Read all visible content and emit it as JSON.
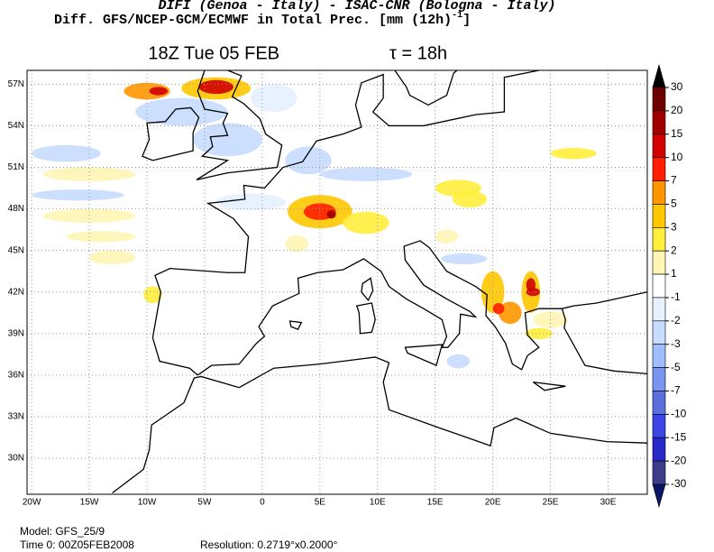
{
  "header": {
    "line1": "DIFI (Genoa - Italy)  -  ISAC-CNR (Bologna - Italy)",
    "line2": "Diff. GFS/NCEP-GCM/ECMWF in Total Prec. [mm (12h)",
    "line2_sup": "-1",
    "line2_end": "]"
  },
  "map": {
    "title": "18Z Tue 05 FEB",
    "tau": "τ = 18h",
    "xlim": [
      -20.4,
      33.4
    ],
    "ylim": [
      27.4,
      58
    ],
    "lon_ticks": [
      {
        "value": -20,
        "label": "20W"
      },
      {
        "value": -15,
        "label": "15W"
      },
      {
        "value": -10,
        "label": "10W"
      },
      {
        "value": -5,
        "label": "5W"
      },
      0,
      {
        "value": 5,
        "label": "5E"
      },
      {
        "value": 10,
        "label": "10E"
      },
      {
        "value": 15,
        "label": "15E"
      },
      {
        "value": 20,
        "label": "20E"
      },
      {
        "value": 25,
        "label": "25E"
      },
      {
        "value": 30,
        "label": "30E"
      }
    ],
    "lat_ticks": [
      {
        "value": 57,
        "label": "57N"
      },
      {
        "value": 54,
        "label": "54N"
      },
      {
        "value": 51,
        "label": "51N"
      },
      {
        "value": 48,
        "label": "48N"
      },
      {
        "value": 45,
        "label": "45N"
      },
      {
        "value": 42,
        "label": "42N"
      },
      {
        "value": 39,
        "label": "39N"
      },
      {
        "value": 36,
        "label": "36N"
      },
      {
        "value": 33,
        "label": "33N"
      },
      {
        "value": 30,
        "label": "30N"
      }
    ]
  },
  "colorbar": {
    "levels": [
      30,
      20,
      15,
      10,
      7,
      5,
      3,
      2,
      1,
      -1,
      -2,
      -3,
      -5,
      -7,
      -10,
      -15,
      -20,
      -30
    ],
    "colors": [
      "#000000",
      "#6e0000",
      "#a00000",
      "#d20000",
      "#ff1e00",
      "#ff9600",
      "#ffc800",
      "#ffee3c",
      "#fff5b4",
      "#ffffff",
      "#e6f0ff",
      "#c8dcff",
      "#a0beff",
      "#7896f0",
      "#5a6edc",
      "#3c46e6",
      "#2828c8",
      "#3c3c8c",
      "#0a1464"
    ]
  },
  "footer": {
    "model": "Model: GFS_25/9",
    "time": "Time 0: 00Z05FEB2008",
    "resolution": "Resolution: 0.2719°x0.2000°"
  }
}
